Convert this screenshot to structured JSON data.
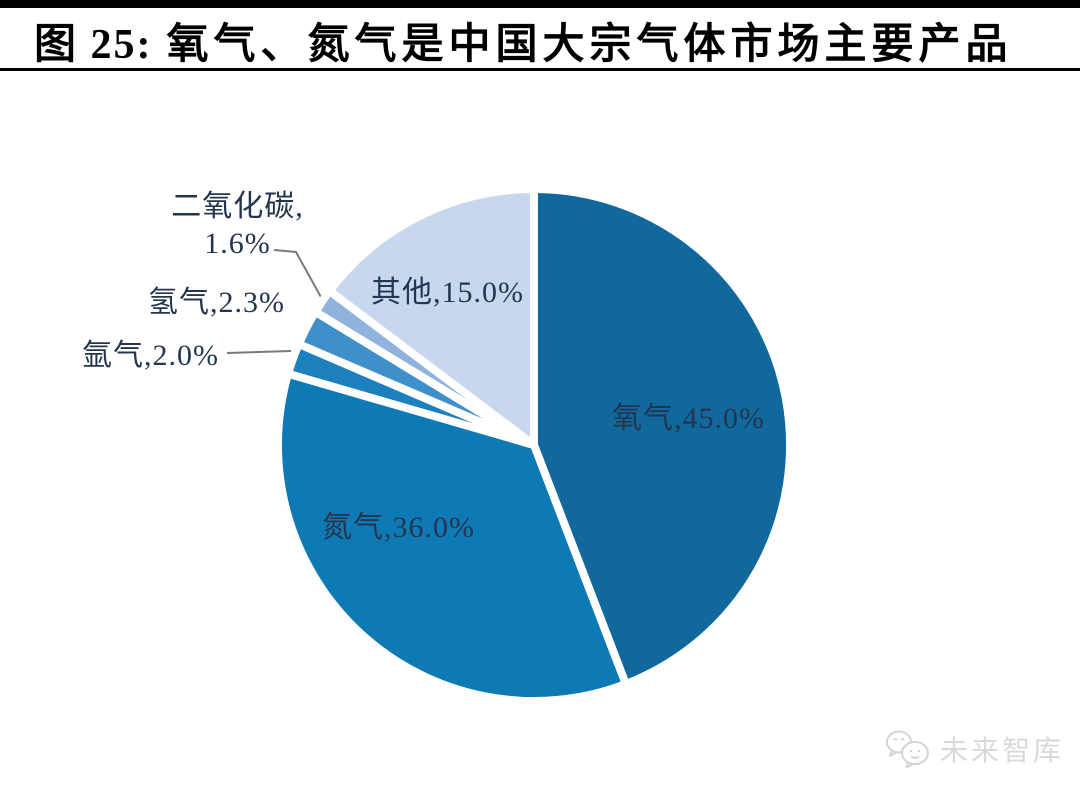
{
  "header": {
    "figure_label": "图 25:",
    "title": "氧气、氮气是中国大宗气体市场主要产品"
  },
  "chart_data": {
    "type": "pie",
    "title": "图 25: 氧气、氮气是中国大宗气体市场主要产品",
    "unit": "%",
    "direction": "clockwise",
    "start_angle_deg": 0,
    "legend": "none",
    "slices": [
      {
        "key": "oxygen",
        "label": "氧气",
        "value": 45.0,
        "color": "#11689C"
      },
      {
        "key": "nitrogen",
        "label": "氮气",
        "value": 36.0,
        "color": "#0E7AB5"
      },
      {
        "key": "argon",
        "label": "氩气",
        "value": 2.0,
        "color": "#1C80BE"
      },
      {
        "key": "hydrogen",
        "label": "氢气",
        "value": 2.3,
        "color": "#3F90CA"
      },
      {
        "key": "co2",
        "label": "二氧化碳",
        "value": 1.6,
        "color": "#8FB3DC"
      },
      {
        "key": "other",
        "label": "其他",
        "value": 15.0,
        "color": "#C6D7EE"
      }
    ],
    "colors": {
      "slice_gap": "#ffffff",
      "label_text": "#24364F",
      "leader_line": "#7a7a7a"
    }
  },
  "labels": {
    "oxygen": "氧气,45.0%",
    "nitrogen": "氮气,36.0%",
    "other": "其他,15.0%",
    "argon": "氩气,2.0%",
    "hydrogen": "氢气,2.3%",
    "co2_line1": "二氧化碳,",
    "co2_line2": "1.6%"
  },
  "watermark": {
    "text": "未来智库",
    "icon": "wechat-icon",
    "color": "#d9d9d9"
  }
}
